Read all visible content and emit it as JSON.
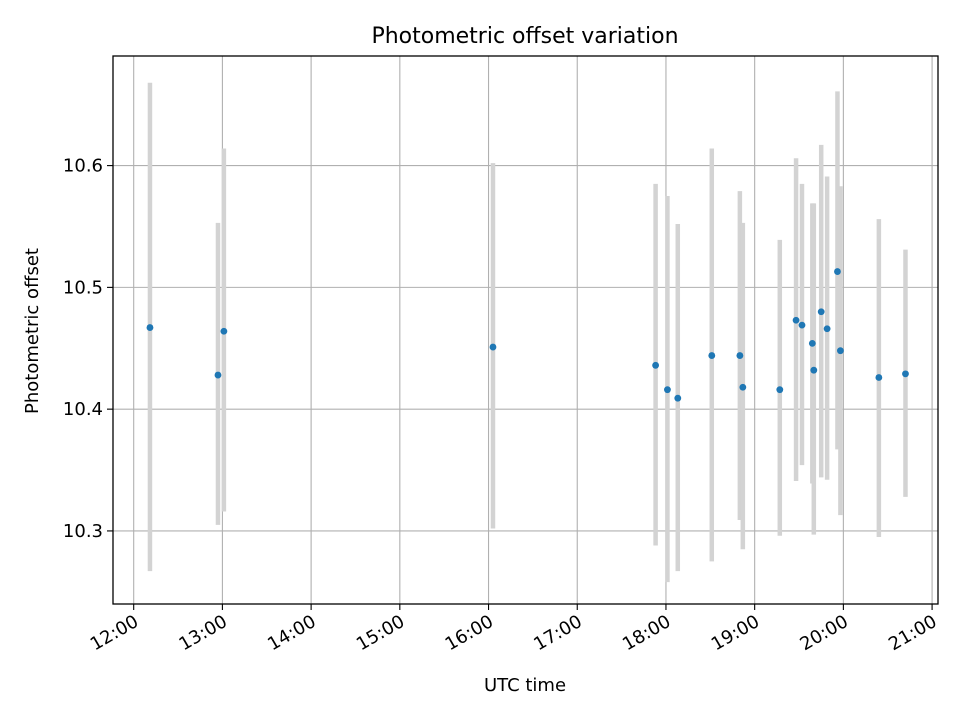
{
  "chart_data": {
    "type": "scatter",
    "title": "Photometric offset variation",
    "xlabel": "UTC time",
    "ylabel": "Photometric offset",
    "grid": true,
    "xlim": [
      "11:46",
      "21:04"
    ],
    "ylim": [
      10.24,
      10.69
    ],
    "xticks": [
      "12:00",
      "13:00",
      "14:00",
      "15:00",
      "16:00",
      "17:00",
      "18:00",
      "19:00",
      "20:00",
      "21:00"
    ],
    "yticks": [
      10.3,
      10.4,
      10.5,
      10.6
    ],
    "marker_color": "#1f77b4",
    "errorbar_color": "#d3d3d3",
    "points": [
      {
        "time": "12:11",
        "offset": 10.467,
        "err_low": 10.267,
        "err_high": 10.668
      },
      {
        "time": "12:57",
        "offset": 10.428,
        "err_low": 10.305,
        "err_high": 10.553
      },
      {
        "time": "13:01",
        "offset": 10.464,
        "err_low": 10.316,
        "err_high": 10.614
      },
      {
        "time": "16:03",
        "offset": 10.451,
        "err_low": 10.302,
        "err_high": 10.602
      },
      {
        "time": "17:53",
        "offset": 10.436,
        "err_low": 10.288,
        "err_high": 10.585
      },
      {
        "time": "18:01",
        "offset": 10.416,
        "err_low": 10.258,
        "err_high": 10.575
      },
      {
        "time": "18:08",
        "offset": 10.409,
        "err_low": 10.267,
        "err_high": 10.552
      },
      {
        "time": "18:31",
        "offset": 10.444,
        "err_low": 10.275,
        "err_high": 10.614
      },
      {
        "time": "18:50",
        "offset": 10.444,
        "err_low": 10.309,
        "err_high": 10.579
      },
      {
        "time": "18:52",
        "offset": 10.418,
        "err_low": 10.285,
        "err_high": 10.553
      },
      {
        "time": "19:17",
        "offset": 10.416,
        "err_low": 10.296,
        "err_high": 10.539
      },
      {
        "time": "19:28",
        "offset": 10.473,
        "err_low": 10.341,
        "err_high": 10.606
      },
      {
        "time": "19:32",
        "offset": 10.469,
        "err_low": 10.354,
        "err_high": 10.585
      },
      {
        "time": "19:39",
        "offset": 10.454,
        "err_low": 10.339,
        "err_high": 10.569
      },
      {
        "time": "19:40",
        "offset": 10.432,
        "err_low": 10.297,
        "err_high": 10.569
      },
      {
        "time": "19:45",
        "offset": 10.48,
        "err_low": 10.344,
        "err_high": 10.617
      },
      {
        "time": "19:49",
        "offset": 10.466,
        "err_low": 10.342,
        "err_high": 10.591
      },
      {
        "time": "19:56",
        "offset": 10.513,
        "err_low": 10.367,
        "err_high": 10.661
      },
      {
        "time": "19:58",
        "offset": 10.448,
        "err_low": 10.313,
        "err_high": 10.583
      },
      {
        "time": "20:24",
        "offset": 10.426,
        "err_low": 10.295,
        "err_high": 10.556
      },
      {
        "time": "20:42",
        "offset": 10.429,
        "err_low": 10.328,
        "err_high": 10.531
      }
    ]
  }
}
